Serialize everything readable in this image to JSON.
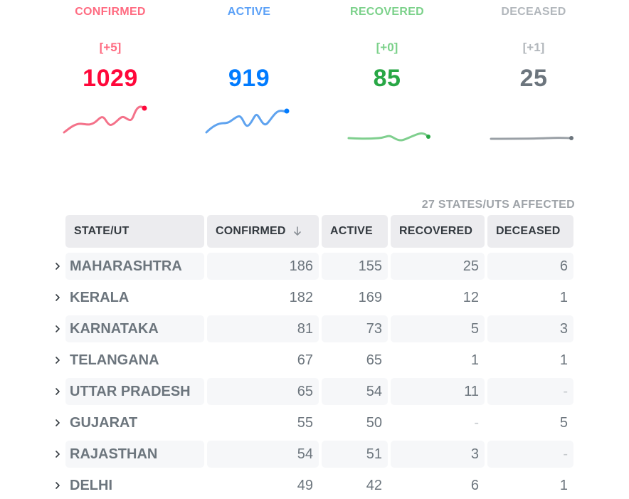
{
  "stats": {
    "confirmed": {
      "label": "CONFIRMED",
      "delta": "[+5]",
      "value": "1029",
      "color": "#ff073a",
      "label_color": "#ff6b81",
      "line_color": "#f4728a"
    },
    "active": {
      "label": "ACTIVE",
      "delta": "",
      "value": "919",
      "color": "#007bff",
      "label_color": "#5aa0f7",
      "line_color": "#5fa3ef"
    },
    "recovered": {
      "label": "RECOVERED",
      "delta": "[+0]",
      "value": "85",
      "color": "#28a745",
      "label_color": "#7bd18a",
      "line_color": "#7fcf8e"
    },
    "deceased": {
      "label": "DECEASED",
      "delta": "[+1]",
      "value": "25",
      "color": "#6c757d",
      "label_color": "#b2b7bc",
      "line_color": "#9aa0a6"
    }
  },
  "affected_text": "27 STATES/UTS AFFECTED",
  "table": {
    "headers": {
      "state": "STATE/UT",
      "confirmed": "CONFIRMED",
      "active": "ACTIVE",
      "recovered": "RECOVERED",
      "deceased": "DECEASED"
    },
    "sort_icon": "arrow-down-icon",
    "rows": [
      {
        "state": "MAHARASHTRA",
        "confirmed": "186",
        "active": "155",
        "recovered": "25",
        "deceased": "6"
      },
      {
        "state": "KERALA",
        "confirmed": "182",
        "active": "169",
        "recovered": "12",
        "deceased": "1"
      },
      {
        "state": "KARNATAKA",
        "confirmed": "81",
        "active": "73",
        "recovered": "5",
        "deceased": "3"
      },
      {
        "state": "TELANGANA",
        "confirmed": "67",
        "active": "65",
        "recovered": "1",
        "deceased": "1"
      },
      {
        "state": "UTTAR PRADESH",
        "confirmed": "65",
        "active": "54",
        "recovered": "11",
        "deceased": "-"
      },
      {
        "state": "GUJARAT",
        "confirmed": "55",
        "active": "50",
        "recovered": "-",
        "deceased": "5"
      },
      {
        "state": "RAJASTHAN",
        "confirmed": "54",
        "active": "51",
        "recovered": "3",
        "deceased": "-"
      },
      {
        "state": "DELHI",
        "confirmed": "49",
        "active": "42",
        "recovered": "6",
        "deceased": "1"
      }
    ]
  }
}
